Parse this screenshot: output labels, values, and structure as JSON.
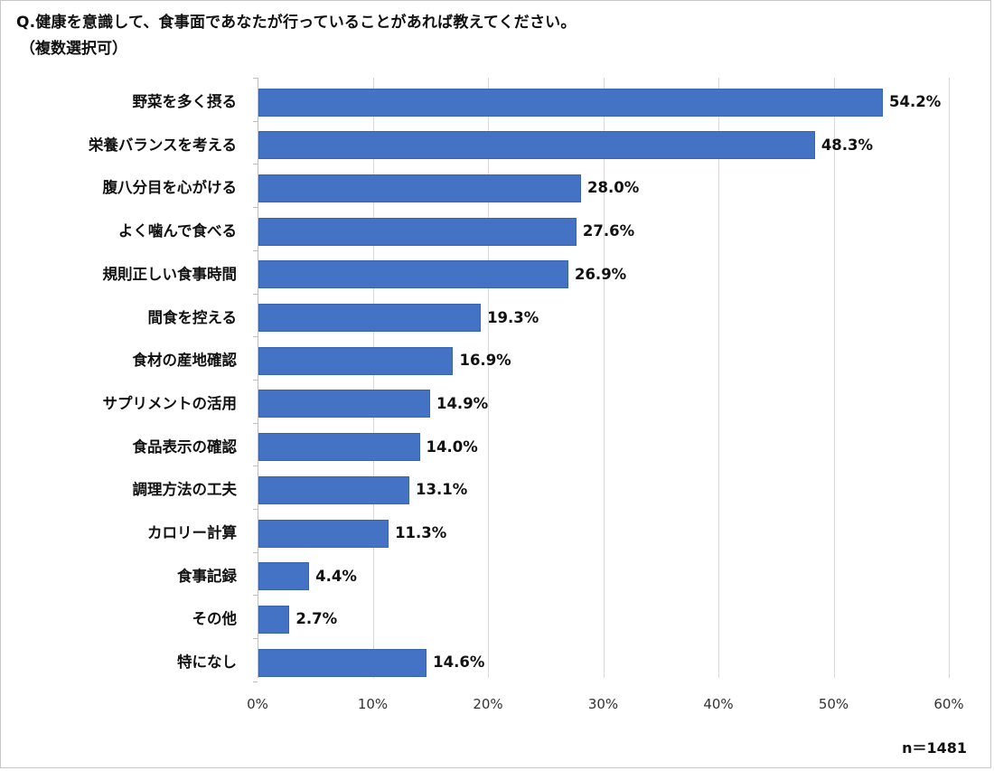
{
  "title": "Q.健康を意識して、食事面であなたが行っていることがあれば教えてください。",
  "subtitle": "（複数選択可）",
  "sample_size": "n＝1481",
  "colors": {
    "bar": "#4472C4",
    "grid": "#D9D9D9",
    "text": "#111111"
  },
  "chart_data": {
    "type": "bar",
    "orientation": "horizontal",
    "title": "Q.健康を意識して、食事面であなたが行っていることがあれば教えてください。（複数選択可）",
    "xlabel": "",
    "ylabel": "",
    "xlim": [
      0,
      60
    ],
    "x_ticks": [
      "0%",
      "10%",
      "20%",
      "30%",
      "40%",
      "50%",
      "60%"
    ],
    "grid": true,
    "legend": null,
    "unit": "%",
    "categories": [
      "野菜を多く摂る",
      "栄養バランスを考える",
      "腹八分目を心がける",
      "よく噛んで食べる",
      "規則正しい食事時間",
      "間食を控える",
      "食材の産地確認",
      "サプリメントの活用",
      "食品表示の確認",
      "調理方法の工夫",
      "カロリー計算",
      "食事記録",
      "その他",
      "特になし"
    ],
    "values": [
      54.2,
      48.3,
      28.0,
      27.6,
      26.9,
      19.3,
      16.9,
      14.9,
      14.0,
      13.1,
      11.3,
      4.4,
      2.7,
      14.6
    ],
    "value_labels": [
      "54.2%",
      "48.3%",
      "28.0%",
      "27.6%",
      "26.9%",
      "19.3%",
      "16.9%",
      "14.9%",
      "14.0%",
      "13.1%",
      "11.3%",
      "4.4%",
      "2.7%",
      "14.6%"
    ],
    "annotation": "n＝1481"
  }
}
